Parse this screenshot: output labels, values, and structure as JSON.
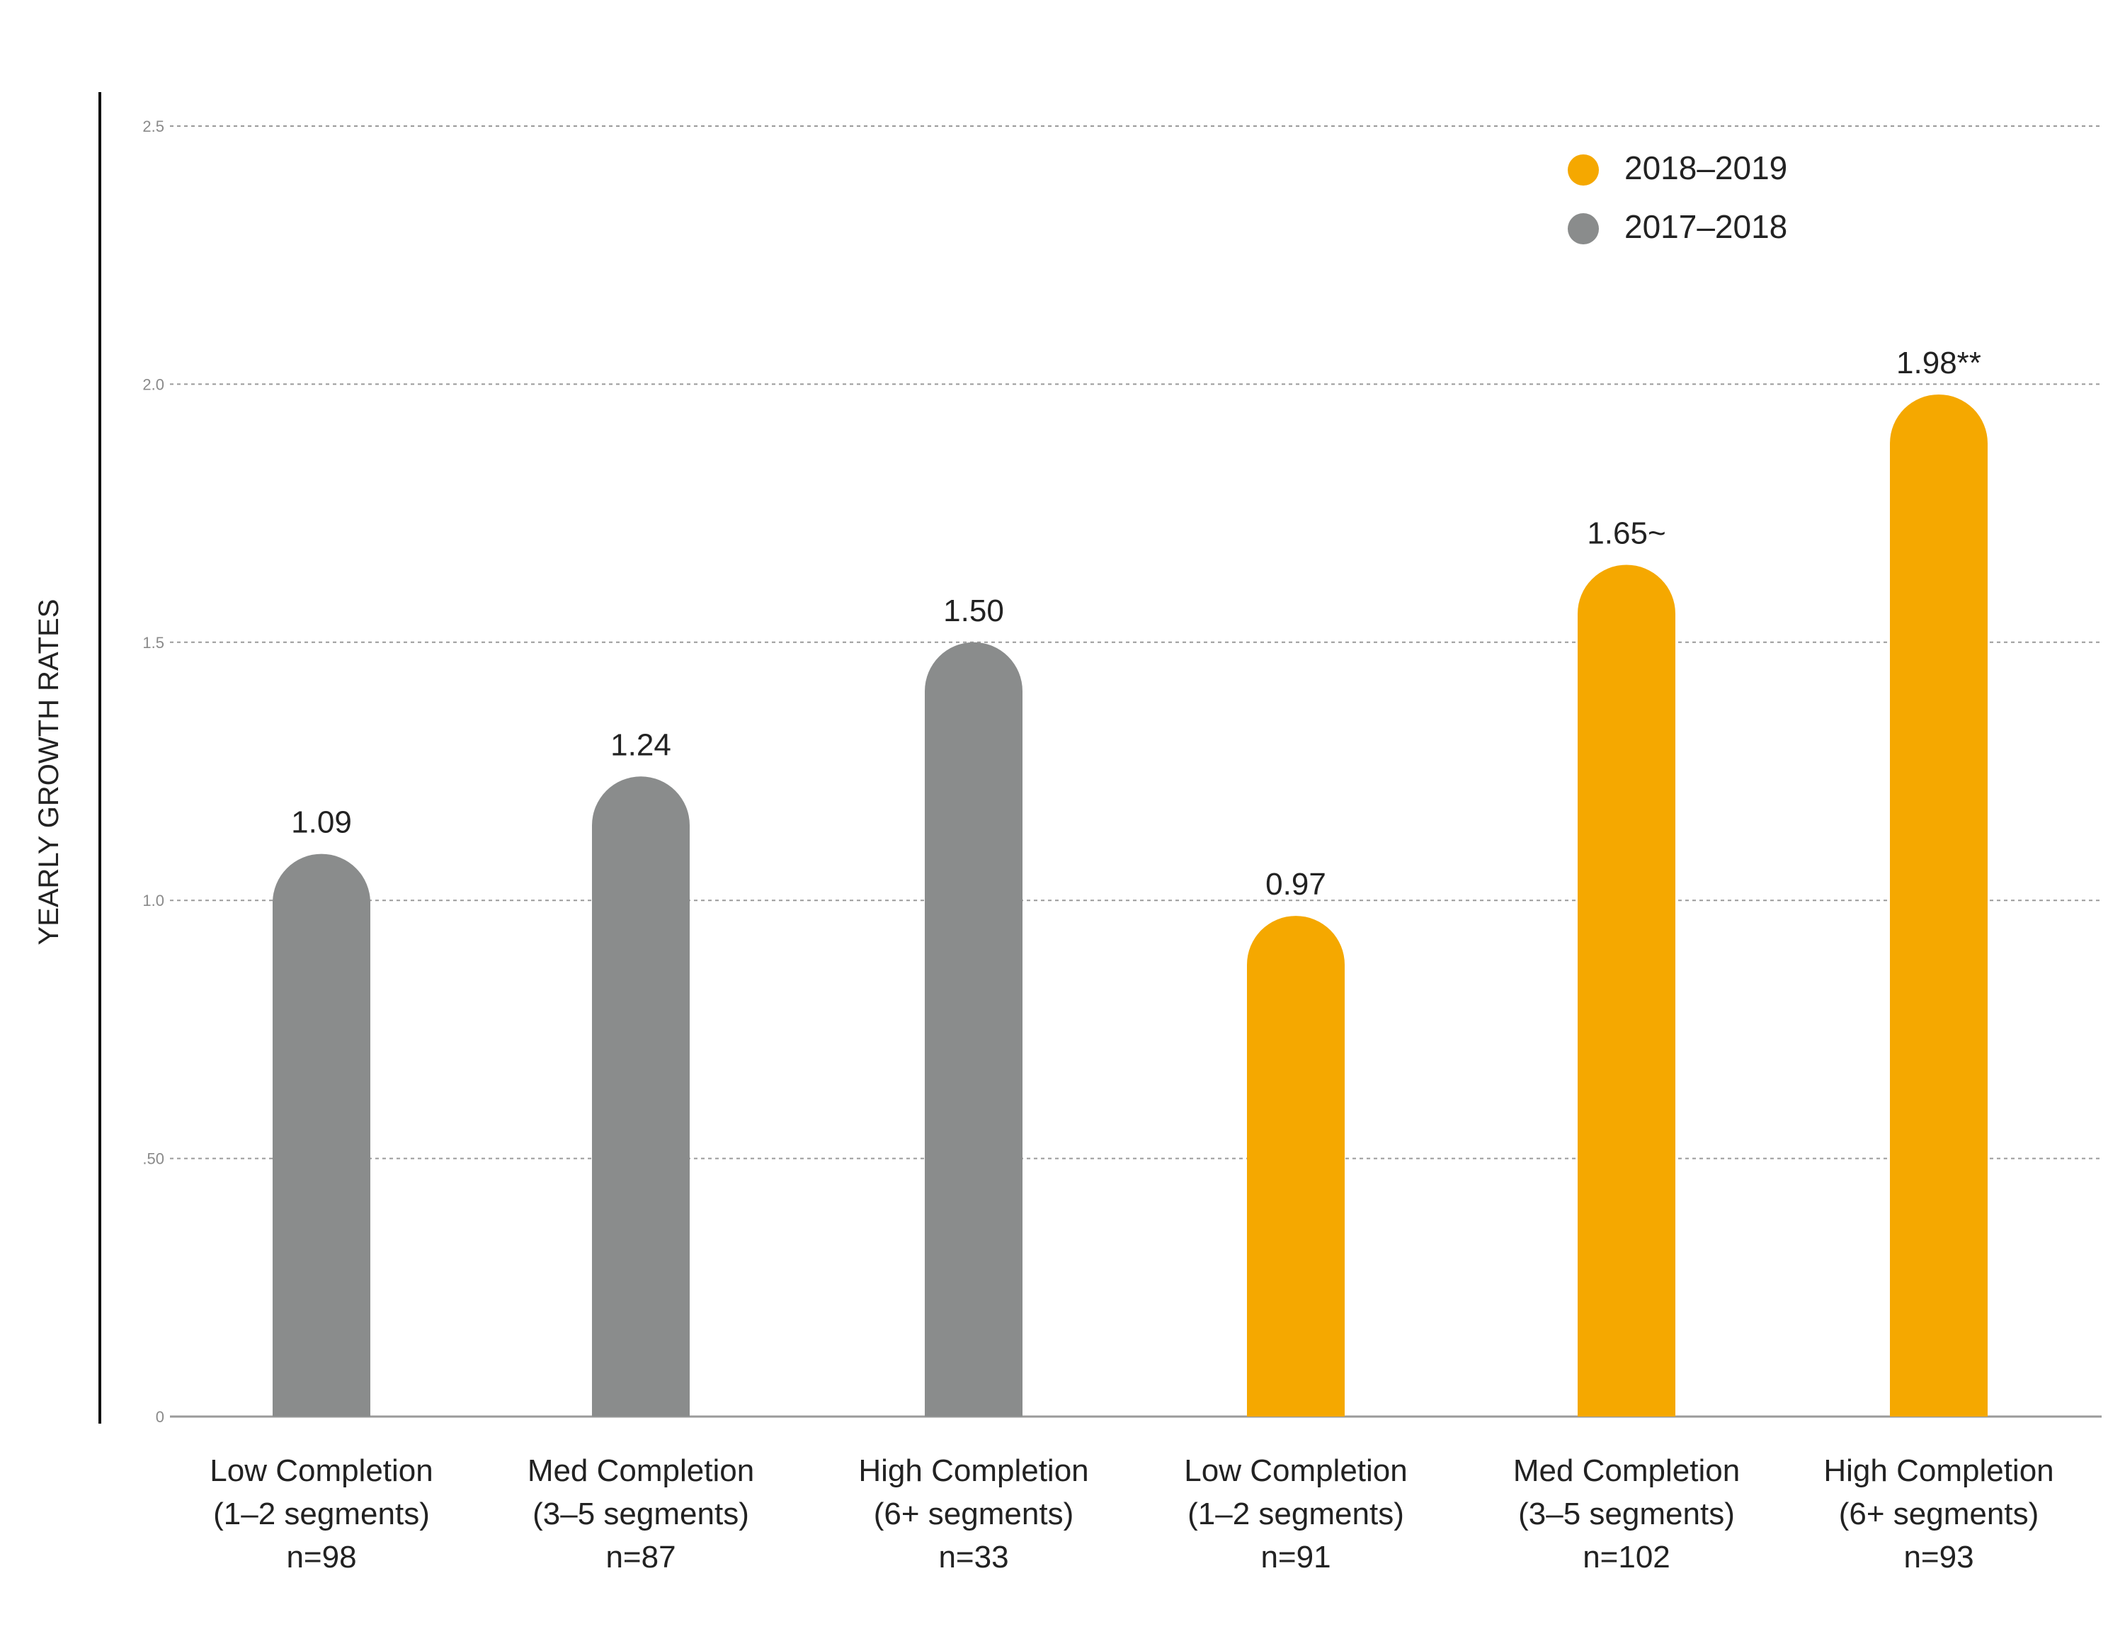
{
  "chart_data": {
    "type": "bar",
    "title": "",
    "xlabel": "",
    "ylabel": "YEARLY GROWTH RATES",
    "ylim": [
      0,
      2.5
    ],
    "yticks": [
      {
        "value": 0,
        "label": "0"
      },
      {
        "value": 0.5,
        "label": ".50"
      },
      {
        "value": 1.0,
        "label": "1.0"
      },
      {
        "value": 1.5,
        "label": "1.5"
      },
      {
        "value": 2.0,
        "label": "2.0"
      },
      {
        "value": 2.5,
        "label": "2.5"
      }
    ],
    "grid": true,
    "legend_position": "top-right",
    "legend": [
      {
        "label": "2018–2019",
        "color": "#f5a800"
      },
      {
        "label": "2017–2018",
        "color": "#8a8c8c"
      }
    ],
    "categories": [
      {
        "line1": "Low Completion",
        "line2": "(1–2 segments)",
        "line3": "n=98"
      },
      {
        "line1": "Med Completion",
        "line2": "(3–5 segments)",
        "line3": "n=87"
      },
      {
        "line1": "High Completion",
        "line2": "(6+ segments)",
        "line3": "n=33"
      },
      {
        "line1": "Low Completion",
        "line2": "(1–2 segments)",
        "line3": "n=91"
      },
      {
        "line1": "Med Completion",
        "line2": "(3–5 segments)",
        "line3": "n=102"
      },
      {
        "line1": "High Completion",
        "line2": "(6+ segments)",
        "line3": "n=93"
      }
    ],
    "bars": [
      {
        "series": "2017–2018",
        "value": 1.09,
        "label": "1.09",
        "color": "#8a8c8c"
      },
      {
        "series": "2017–2018",
        "value": 1.24,
        "label": "1.24",
        "color": "#8a8c8c"
      },
      {
        "series": "2017–2018",
        "value": 1.5,
        "label": "1.50",
        "color": "#8a8c8c"
      },
      {
        "series": "2018–2019",
        "value": 0.97,
        "label": "0.97",
        "color": "#f5a800"
      },
      {
        "series": "2018–2019",
        "value": 1.65,
        "label": "1.65~",
        "color": "#f5a800"
      },
      {
        "series": "2018–2019",
        "value": 1.98,
        "label": "1.98**",
        "color": "#f5a800"
      }
    ]
  }
}
